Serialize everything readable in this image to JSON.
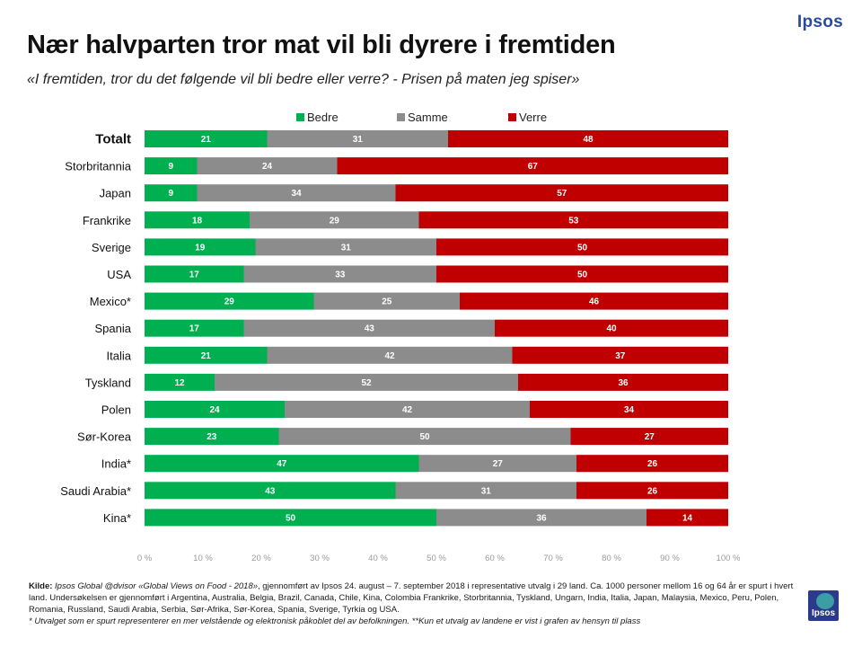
{
  "brand": {
    "top": "Ipsos",
    "bottom": "Ipsos"
  },
  "header": {
    "title": "Nær halvparten tror mat vil bli dyrere i fremtiden",
    "subtitle": "«I fremtiden, tror du det følgende vil bli bedre eller verre? - Prisen på maten jeg spiser»"
  },
  "chart_data": {
    "type": "bar",
    "orientation": "horizontal",
    "stacked": true,
    "categories": [
      "Totalt",
      "Storbritannia",
      "Japan",
      "Frankrike",
      "Sverige",
      "USA",
      "Mexico*",
      "Spania",
      "Italia",
      "Tyskland",
      "Polen",
      "Sør-Korea",
      "India*",
      "Saudi Arabia*",
      "Kina*"
    ],
    "highlight_category": "Totalt",
    "series": [
      {
        "name": "Bedre",
        "color": "#00b050",
        "values": [
          21,
          9,
          9,
          18,
          19,
          17,
          29,
          17,
          21,
          12,
          24,
          23,
          47,
          43,
          50
        ]
      },
      {
        "name": "Samme",
        "color": "#8c8c8c",
        "values": [
          31,
          24,
          34,
          29,
          31,
          33,
          25,
          43,
          42,
          52,
          42,
          50,
          27,
          31,
          36
        ]
      },
      {
        "name": "Verre",
        "color": "#c00000",
        "values": [
          48,
          67,
          57,
          53,
          50,
          50,
          46,
          40,
          37,
          36,
          34,
          27,
          26,
          26,
          14
        ]
      }
    ],
    "xlim": [
      0,
      100
    ],
    "x_ticks": [
      "0 %",
      "10 %",
      "20 %",
      "30 %",
      "40 %",
      "50 %",
      "60 %",
      "70 %",
      "80 %",
      "90 %",
      "100 %"
    ],
    "legend_position": "top-center",
    "grid": false
  },
  "footnote": {
    "source_label": "Kilde:",
    "source_italic": "Ipsos Global @dvisor «Global Views on Food - 2018»",
    "source_text": ", gjennomført av Ipsos 24. august – 7. september 2018 i representative utvalg i 29 land. Ca. 1000 personer mellom 16 og 64 år er spurt i hvert land. Undersøkelsen er gjennomført i Argentina, Australia, Belgia, Brazil, Canada, Chile, Kina, Colombia Frankrike, Storbritannia, Tyskland, Ungarn, India, Italia, Japan, Malaysia, Mexico, Peru, Polen, Romania, Russland, Saudi Arabia, Serbia, Sør-Afrika, Sør-Korea, Spania, Sverige, Tyrkia og USA.",
    "note2": "* Utvalget som er spurt representerer en mer velstående og elektronisk påkoblet del av befolkningen. **Kun et utvalg av landene er vist i grafen av hensyn til plass"
  }
}
